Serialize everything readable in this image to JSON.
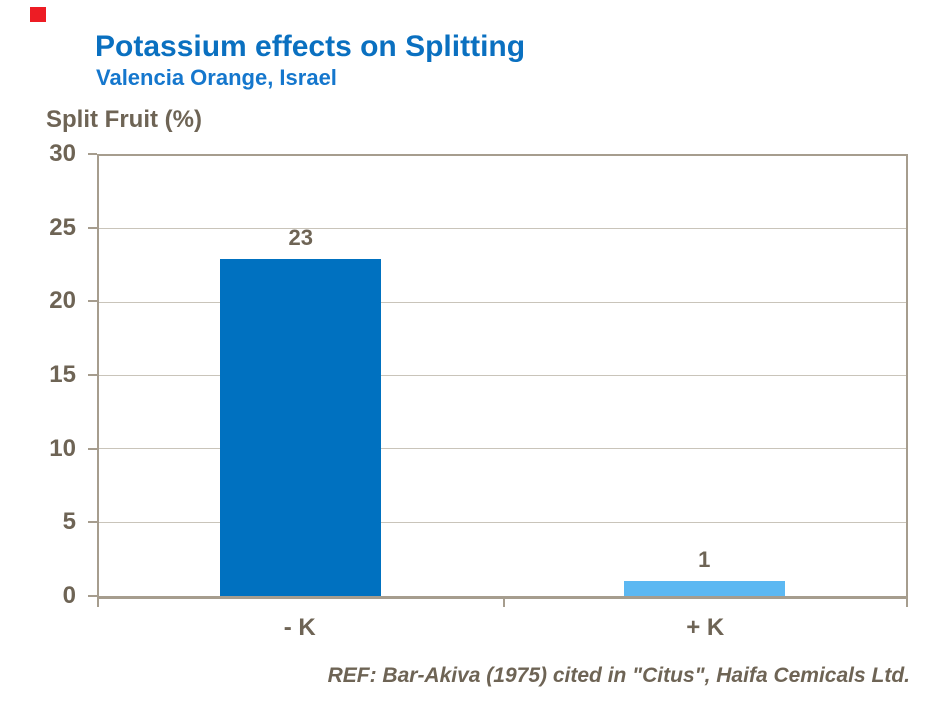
{
  "colors": {
    "title_blue": "#0a70c0",
    "subtitle_blue": "#1577cd",
    "text_brown": "#6e6455",
    "axis_line": "#a69d8e",
    "gridline": "#c9c4ba",
    "bar_dark_blue": "#0071c0",
    "bar_light_blue": "#5cb8f2",
    "logo_red": "#ed1c24"
  },
  "header": {
    "title": "Potassium effects on Splitting",
    "subtitle": "Valencia Orange, Israel"
  },
  "chart_data": {
    "type": "bar",
    "title": "Potassium effects on Splitting",
    "subtitle": "Valencia Orange, Israel",
    "ylabel": "Split Fruit (%)",
    "xlabel": "",
    "categories": [
      "- K",
      "+ K"
    ],
    "values": [
      23,
      1
    ],
    "data_labels": [
      "23",
      "1"
    ],
    "bar_colors": [
      "#0071c0",
      "#5cb8f2"
    ],
    "ylim": [
      0,
      30
    ],
    "ytick_step": 5,
    "yticks": [
      0,
      5,
      10,
      15,
      20,
      25,
      30
    ],
    "grid": true,
    "legend": false
  },
  "footer": {
    "reference": "REF: Bar-Akiva (1975) cited in \"Citus\", Haifa Cemicals Ltd."
  }
}
